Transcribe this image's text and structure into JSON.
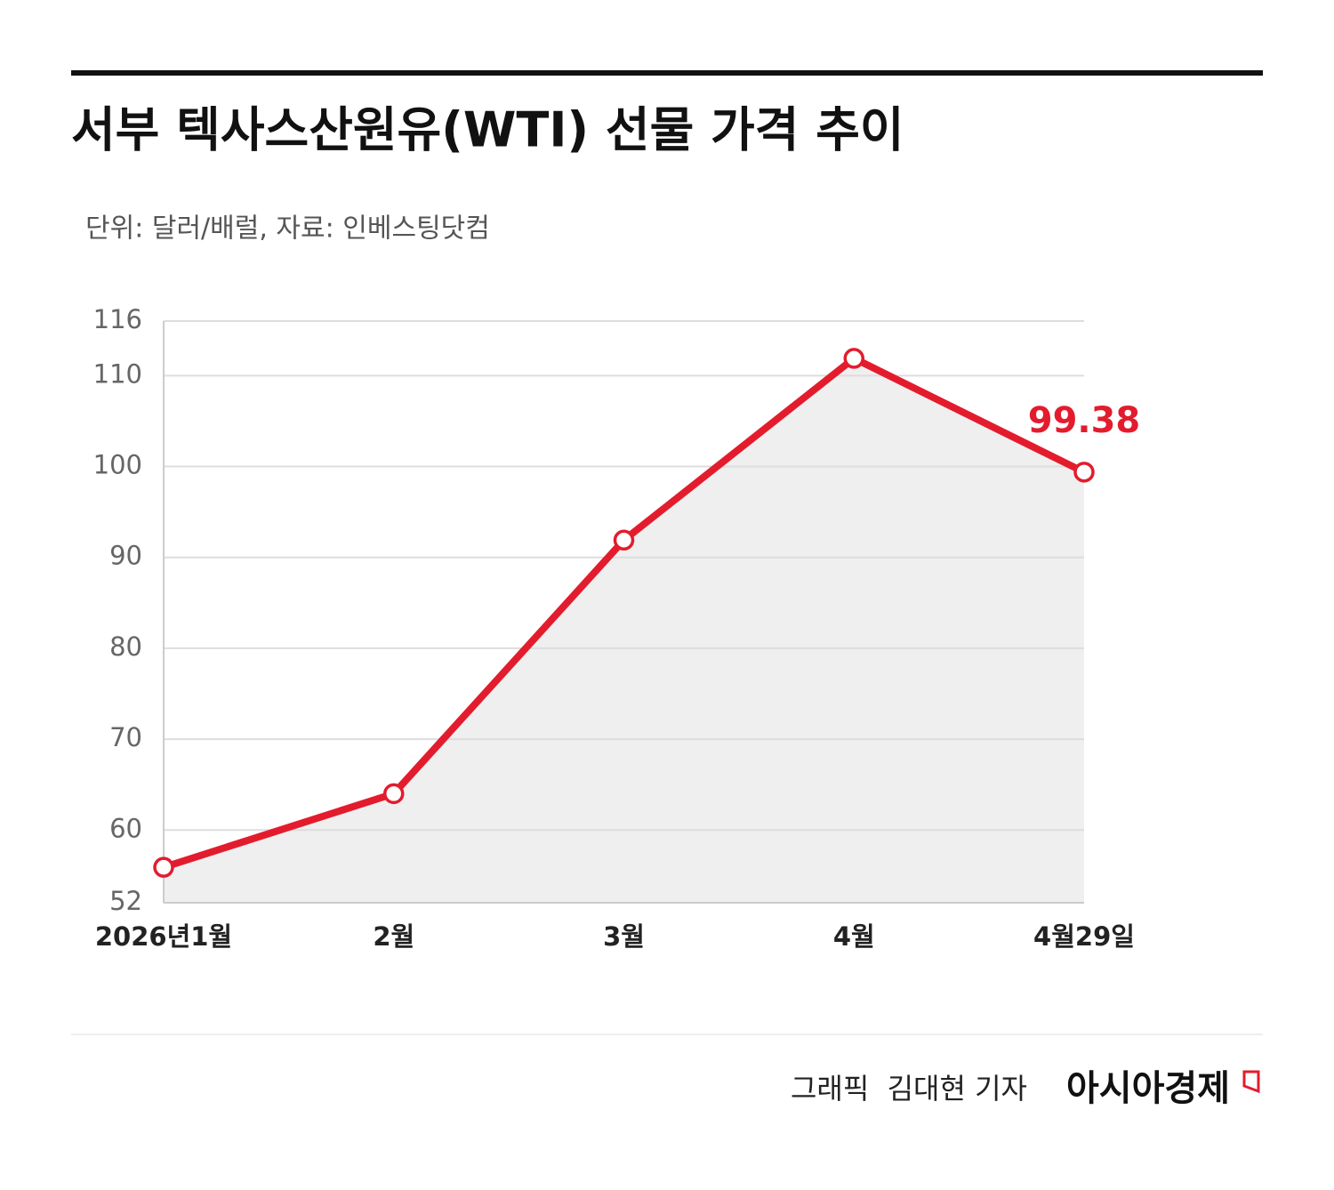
{
  "title": "서부 텍사스산원유(WTI) 선물 가격 추이",
  "subtitle": "단위: 달러/배럴, 자료: 인베스팅닷컴",
  "credit": "그래픽  김대현 기자",
  "brand": "아시아경제",
  "chart_data": {
    "type": "line",
    "categories": [
      "2026년1월",
      "2월",
      "3월",
      "4월",
      "4월29일"
    ],
    "series": [
      {
        "name": "WTI",
        "color": "#e31c2d",
        "values": [
          55.9,
          64.0,
          91.9,
          111.9,
          99.38
        ]
      }
    ],
    "area_color": "#efefef",
    "ylim": [
      52,
      116
    ],
    "yticks": [
      52,
      60,
      70,
      80,
      90,
      100,
      110,
      116
    ],
    "grid": true
  }
}
